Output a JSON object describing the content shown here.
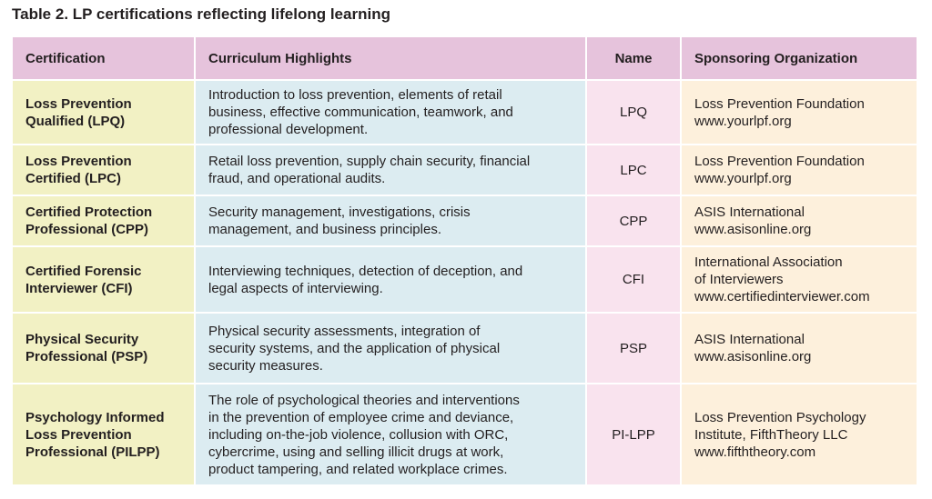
{
  "caption": "Table 2.  LP certifications reflecting lifelong learning",
  "headers": {
    "certification": "Certification",
    "curriculum": "Curriculum Highlights",
    "name": "Name",
    "sponsor": "Sponsoring Organization"
  },
  "rows": [
    {
      "cert": [
        "Loss Prevention",
        "Qualified (LPQ)"
      ],
      "curriculum": [
        "Introduction to loss prevention, elements of retail",
        "business, effective communication, teamwork, and",
        "professional development."
      ],
      "name": "LPQ",
      "org": [
        "Loss Prevention Foundation",
        "www.yourlpf.org"
      ]
    },
    {
      "cert": [
        "Loss Prevention",
        "Certified (LPC)"
      ],
      "curriculum": [
        "Retail loss prevention, supply chain security, financial",
        "fraud, and operational audits."
      ],
      "name": "LPC",
      "org": [
        "Loss Prevention Foundation",
        "www.yourlpf.org"
      ]
    },
    {
      "cert": [
        "Certified Protection",
        "Professional (CPP)"
      ],
      "curriculum": [
        "Security management, investigations, crisis",
        "management, and business principles."
      ],
      "name": "CPP",
      "org": [
        "ASIS International",
        "www.asisonline.org"
      ]
    },
    {
      "cert": [
        "Certified Forensic",
        "Interviewer (CFI)"
      ],
      "curriculum": [
        "Interviewing techniques, detection of deception, and",
        "legal aspects of interviewing."
      ],
      "name": "CFI",
      "org": [
        "International Association",
        "of Interviewers",
        "www.certifiedinterviewer.com"
      ]
    },
    {
      "cert": [
        "Physical Security",
        "Professional (PSP)"
      ],
      "curriculum": [
        "Physical security assessments, integration of",
        "security systems, and the application of physical",
        "security measures."
      ],
      "name": "PSP",
      "org": [
        "ASIS International",
        "www.asisonline.org"
      ]
    },
    {
      "cert": [
        "Psychology Informed",
        "Loss Prevention",
        "Professional (PILPP)"
      ],
      "curriculum": [
        "The role of psychological theories and interventions",
        "in the prevention of employee crime and deviance,",
        "including on-the-job violence, collusion with ORC,",
        "cybercrime, using and selling illicit drugs at work,",
        "product tampering, and related workplace crimes."
      ],
      "name": "PI-LPP",
      "org": [
        "Loss Prevention Psychology",
        "Institute, FifthTheory LLC",
        "www.fifththeory.com"
      ]
    }
  ]
}
